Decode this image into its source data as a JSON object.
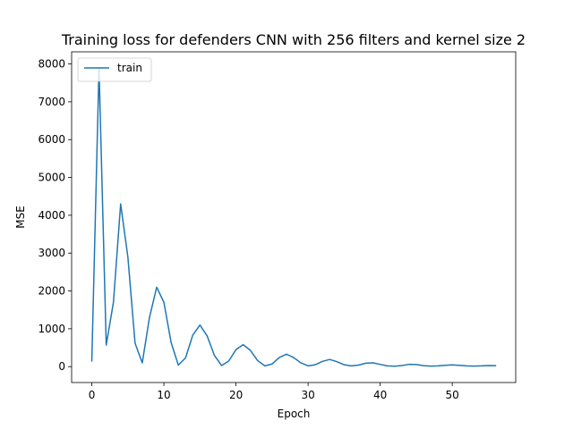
{
  "chart_data": {
    "type": "line",
    "title": "Training loss for defenders CNN with 256 filters and kernel size 2",
    "xlabel": "Epoch",
    "ylabel": "MSE",
    "xlim": [
      -2.8,
      58.8
    ],
    "ylim": [
      -420,
      8320
    ],
    "xticks": [
      0,
      10,
      20,
      30,
      40,
      50
    ],
    "yticks": [
      0,
      1000,
      2000,
      3000,
      4000,
      5000,
      6000,
      7000,
      8000
    ],
    "grid": false,
    "legend": {
      "position": "top-left",
      "entries": [
        "train"
      ]
    },
    "series": [
      {
        "name": "train",
        "color": "#1f77b4",
        "x": [
          0,
          1,
          2,
          3,
          4,
          5,
          6,
          7,
          8,
          9,
          10,
          11,
          12,
          13,
          14,
          15,
          16,
          17,
          18,
          19,
          20,
          21,
          22,
          23,
          24,
          25,
          26,
          27,
          28,
          29,
          30,
          31,
          32,
          33,
          34,
          35,
          36,
          37,
          38,
          39,
          40,
          41,
          42,
          43,
          44,
          45,
          46,
          47,
          48,
          49,
          50,
          51,
          52,
          53,
          54,
          55,
          56
        ],
        "y": [
          150,
          7900,
          570,
          1700,
          4300,
          2900,
          620,
          100,
          1300,
          2100,
          1700,
          640,
          40,
          230,
          830,
          1100,
          810,
          300,
          30,
          150,
          450,
          580,
          430,
          160,
          20,
          70,
          240,
          330,
          240,
          100,
          20,
          50,
          140,
          190,
          130,
          50,
          20,
          40,
          90,
          100,
          60,
          20,
          10,
          30,
          60,
          55,
          25,
          15,
          20,
          35,
          45,
          35,
          20,
          15,
          20,
          30,
          25
        ]
      }
    ]
  }
}
